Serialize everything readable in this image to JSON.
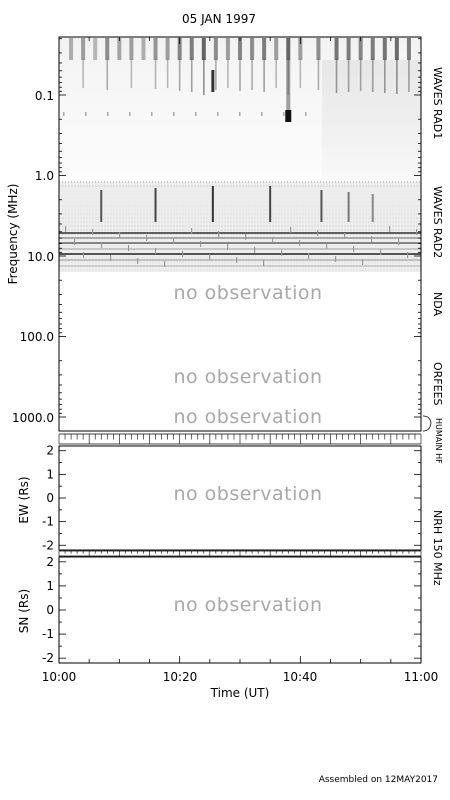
{
  "chart_data": [
    {
      "type": "heatmap",
      "title": "05 JAN 1997",
      "ylabel": "Frequency (MHz)",
      "y_scale": "log",
      "y_inverted": true,
      "yticks": [
        "0.1",
        "1.0",
        "10.0",
        "100.0",
        "1000.0"
      ],
      "panels": [
        {
          "label": "WAVES RAD1",
          "status": "data",
          "freq_range_mhz": [
            0.02,
            1.075
          ]
        },
        {
          "label": "WAVES RAD2",
          "status": "data",
          "freq_range_mhz": [
            1.075,
            13.8
          ]
        },
        {
          "label": "NDA",
          "status": "no_data",
          "text": "no observation"
        },
        {
          "label": "ORFEES",
          "status": "no_data",
          "text": "no observation"
        },
        {
          "label": "HUMAIN HF",
          "status": "no_data",
          "text": "no observation"
        }
      ]
    },
    {
      "type": "scatter",
      "ylabel": "EW (Rs)",
      "ylim": [
        -2.2,
        2.2
      ],
      "yticks": [
        "2",
        "1",
        "0",
        "-1",
        "-2"
      ],
      "status": "no_data",
      "text": "no observation"
    },
    {
      "type": "scatter",
      "ylabel": "SN (Rs)",
      "ylim": [
        -2.2,
        2.2
      ],
      "yticks": [
        "2",
        "1",
        "0",
        "-1",
        "-2"
      ],
      "status": "no_data",
      "text": "no observation"
    }
  ],
  "shared": {
    "side_label": "NRH 150 MHz",
    "xlabel": "Time (UT)",
    "xticks": [
      "10:00",
      "10:20",
      "10:40",
      "11:00"
    ],
    "xlim": [
      "10:00",
      "11:00"
    ]
  },
  "footer": "Assembled on 12MAY2017"
}
